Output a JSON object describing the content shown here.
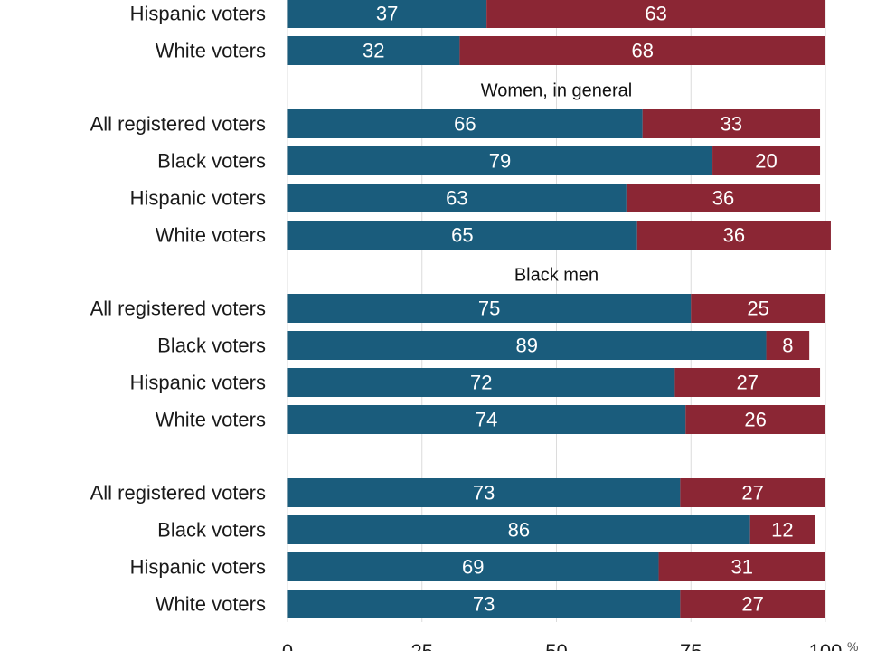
{
  "chart_data": {
    "type": "bar",
    "orientation": "horizontal",
    "stacked": true,
    "x_ticks": [
      0,
      25,
      50,
      75,
      100
    ],
    "x_unit": "%",
    "xlim": [
      0,
      100
    ],
    "grid": true,
    "colors": {
      "first": "#1a5c7c",
      "second": "#8b2634"
    },
    "groups": [
      {
        "label": "",
        "rows": [
          {
            "category": "Hispanic voters",
            "values": [
              37,
              63
            ]
          },
          {
            "category": "White voters",
            "values": [
              32,
              68
            ]
          }
        ]
      },
      {
        "label": "Women, in general",
        "rows": [
          {
            "category": "All registered voters",
            "values": [
              66,
              33
            ]
          },
          {
            "category": "Black voters",
            "values": [
              79,
              20
            ]
          },
          {
            "category": "Hispanic voters",
            "values": [
              63,
              36
            ]
          },
          {
            "category": "White voters",
            "values": [
              65,
              36
            ]
          }
        ]
      },
      {
        "label": "Black men",
        "rows": [
          {
            "category": "All registered voters",
            "values": [
              75,
              25
            ]
          },
          {
            "category": "Black voters",
            "values": [
              89,
              8
            ]
          },
          {
            "category": "Hispanic voters",
            "values": [
              72,
              27
            ]
          },
          {
            "category": "White voters",
            "values": [
              74,
              26
            ]
          }
        ]
      },
      {
        "label": "",
        "rows": [
          {
            "category": "All registered voters",
            "values": [
              73,
              27
            ]
          },
          {
            "category": "Black voters",
            "values": [
              86,
              12
            ]
          },
          {
            "category": "Hispanic voters",
            "values": [
              69,
              31
            ]
          },
          {
            "category": "White voters",
            "values": [
              73,
              27
            ]
          }
        ]
      }
    ]
  }
}
